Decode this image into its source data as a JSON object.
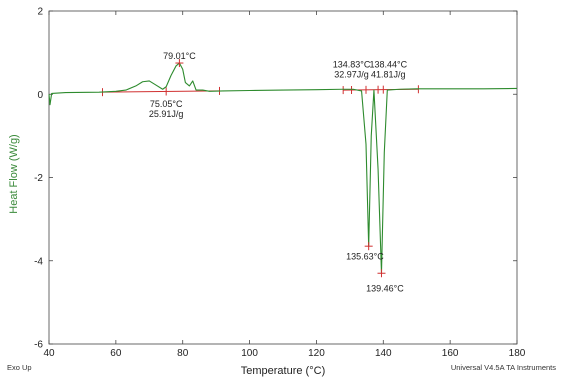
{
  "chart_data": {
    "type": "line",
    "title": "",
    "xlabel": "Temperature (°C)",
    "ylabel": "Heat Flow (W/g)",
    "xlim": [
      40,
      180
    ],
    "ylim": [
      -6,
      2
    ],
    "x_ticks": [
      40,
      60,
      80,
      100,
      120,
      140,
      160,
      180
    ],
    "y_ticks": [
      2,
      0,
      -2,
      -4,
      -6
    ],
    "x_tick_labels": [
      "40",
      "60",
      "80",
      "100",
      "120",
      "140",
      "160",
      "180"
    ],
    "y_tick_labels": [
      "2",
      "0",
      "-2",
      "-4",
      "-6"
    ],
    "grid": false,
    "legend": "none",
    "series": [
      {
        "color": "#2e8b2e",
        "points": [
          [
            40,
            0.0
          ],
          [
            40.3,
            -0.25
          ],
          [
            40.8,
            0.02
          ],
          [
            45,
            0.04
          ],
          [
            55,
            0.05
          ],
          [
            60,
            0.07
          ],
          [
            63,
            0.1
          ],
          [
            66,
            0.2
          ],
          [
            68,
            0.3
          ],
          [
            70,
            0.32
          ],
          [
            72,
            0.22
          ],
          [
            74,
            0.12
          ],
          [
            75.05,
            0.18
          ],
          [
            76.5,
            0.45
          ],
          [
            78,
            0.68
          ],
          [
            79.01,
            0.75
          ],
          [
            80,
            0.6
          ],
          [
            80.8,
            0.28
          ],
          [
            82,
            0.2
          ],
          [
            83,
            0.32
          ],
          [
            84,
            0.1
          ],
          [
            86,
            0.1
          ],
          [
            88,
            0.07
          ],
          [
            92,
            0.08
          ],
          [
            100,
            0.09
          ],
          [
            110,
            0.1
          ],
          [
            120,
            0.11
          ],
          [
            128,
            0.12
          ],
          [
            131,
            0.12
          ],
          [
            133.5,
            0.08
          ],
          [
            134.83,
            -1.2
          ],
          [
            135.63,
            -3.65
          ],
          [
            136.4,
            -1.0
          ],
          [
            137.2,
            0.1
          ],
          [
            138.44,
            -1.8
          ],
          [
            139.46,
            -4.3
          ],
          [
            140.3,
            -1.4
          ],
          [
            141.2,
            0.1
          ],
          [
            145,
            0.12
          ],
          [
            150,
            0.13
          ],
          [
            160,
            0.13
          ],
          [
            170,
            0.13
          ],
          [
            180,
            0.14
          ]
        ]
      }
    ],
    "baselines": [
      {
        "from": [
          56,
          0.05
        ],
        "to": [
          91,
          0.08
        ],
        "ticks": [
          56,
          75.05,
          91
        ]
      },
      {
        "from": [
          128,
          0.1
        ],
        "to": [
          150.5,
          0.12
        ],
        "ticks": [
          128,
          130.5,
          134.83,
          138.44,
          140,
          150.5
        ]
      }
    ],
    "markers": [
      {
        "x": 79.01,
        "y": 0.75
      },
      {
        "x": 135.63,
        "y": -3.65
      },
      {
        "x": 139.46,
        "y": -4.3
      }
    ],
    "annotations": [
      {
        "lines": [
          "79.01°C"
        ],
        "x": 79.01,
        "y": 0.85,
        "anchor": "middle",
        "baseline": "bottom"
      },
      {
        "lines": [
          "75.05°C",
          "25.91J/g"
        ],
        "x": 75.05,
        "y": -0.12,
        "anchor": "middle",
        "baseline": "top"
      },
      {
        "lines": [
          "134.83°C",
          "32.97J/g"
        ],
        "x": 130.5,
        "y": 0.4,
        "anchor": "middle",
        "baseline": "bottom"
      },
      {
        "lines": [
          "138.44°C",
          "41.81J/g"
        ],
        "x": 141.5,
        "y": 0.4,
        "anchor": "middle",
        "baseline": "bottom"
      },
      {
        "lines": [
          "135.63°C"
        ],
        "x": 134.5,
        "y": -3.78,
        "anchor": "middle",
        "baseline": "top"
      },
      {
        "lines": [
          "139.46°C"
        ],
        "x": 140.5,
        "y": -4.55,
        "anchor": "middle",
        "baseline": "top"
      }
    ]
  },
  "footer": {
    "left": "Exo Up",
    "right": "Universal V4.5A TA Instruments"
  }
}
